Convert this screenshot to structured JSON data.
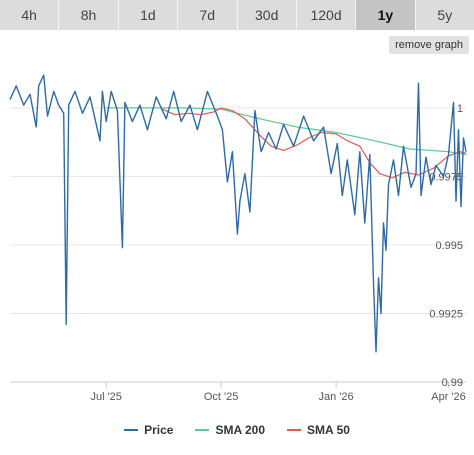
{
  "tabs": [
    {
      "label": "4h",
      "active": false
    },
    {
      "label": "8h",
      "active": false
    },
    {
      "label": "1d",
      "active": false
    },
    {
      "label": "7d",
      "active": false
    },
    {
      "label": "30d",
      "active": false
    },
    {
      "label": "120d",
      "active": false
    },
    {
      "label": "1y",
      "active": true
    },
    {
      "label": "5y",
      "active": false
    }
  ],
  "remove_graph_label": "remove graph",
  "colors": {
    "price": "#2e6ba6",
    "sma200": "#5cc98e",
    "sma50": "#e05a5a",
    "grid": "#e6e6e6",
    "axis": "#bcd0e6"
  },
  "chart_data": {
    "type": "line",
    "title": "",
    "xlabel": "",
    "ylabel": "",
    "x_range": [
      "2025-04-15",
      "2026-04-15"
    ],
    "ylim": [
      0.99,
      1.0016
    ],
    "x_ticks": [
      {
        "label": "Jul '25",
        "date": "2025-07-01"
      },
      {
        "label": "Oct '25",
        "date": "2025-10-01"
      },
      {
        "label": "Jan '26",
        "date": "2026-01-01"
      },
      {
        "label": "Apr '26",
        "date": "2026-04-01"
      }
    ],
    "y_ticks": [
      {
        "label": "0.99",
        "value": 0.99
      },
      {
        "label": "0.9925",
        "value": 0.9925
      },
      {
        "label": "0.995",
        "value": 0.995
      },
      {
        "label": "0.9975",
        "value": 0.9975
      },
      {
        "label": "1",
        "value": 1.0
      }
    ],
    "grid": true,
    "legend_position": "bottom",
    "series": [
      {
        "name": "Price",
        "color": "#2e6ba6",
        "points": [
          [
            "2025-04-15",
            1.0003
          ],
          [
            "2025-04-20",
            1.0008
          ],
          [
            "2025-04-26",
            1.0001
          ],
          [
            "2025-05-01",
            1.0005
          ],
          [
            "2025-05-06",
            0.9993
          ],
          [
            "2025-05-08",
            1.0008
          ],
          [
            "2025-05-12",
            1.0012
          ],
          [
            "2025-05-15",
            0.9997
          ],
          [
            "2025-05-20",
            1.0006
          ],
          [
            "2025-05-24",
            1.0001
          ],
          [
            "2025-05-28",
            0.9998
          ],
          [
            "2025-05-30",
            0.9921
          ],
          [
            "2025-06-01",
            1.0001
          ],
          [
            "2025-06-06",
            1.0006
          ],
          [
            "2025-06-12",
            0.9998
          ],
          [
            "2025-06-18",
            1.0004
          ],
          [
            "2025-06-22",
            0.9996
          ],
          [
            "2025-06-26",
            0.9988
          ],
          [
            "2025-06-28",
            1.0006
          ],
          [
            "2025-07-01",
            0.9995
          ],
          [
            "2025-07-05",
            1.0006
          ],
          [
            "2025-07-10",
            0.9999
          ],
          [
            "2025-07-14",
            0.9949
          ],
          [
            "2025-07-16",
            1.0002
          ],
          [
            "2025-07-22",
            0.9995
          ],
          [
            "2025-07-28",
            1.0001
          ],
          [
            "2025-08-03",
            0.9992
          ],
          [
            "2025-08-10",
            1.0004
          ],
          [
            "2025-08-18",
            0.9996
          ],
          [
            "2025-08-24",
            1.0006
          ],
          [
            "2025-08-30",
            0.9995
          ],
          [
            "2025-09-06",
            1.0001
          ],
          [
            "2025-09-12",
            0.9992
          ],
          [
            "2025-09-20",
            1.0006
          ],
          [
            "2025-09-28",
            0.9997
          ],
          [
            "2025-10-02",
            0.9992
          ],
          [
            "2025-10-06",
            0.9973
          ],
          [
            "2025-10-10",
            0.9984
          ],
          [
            "2025-10-14",
            0.9954
          ],
          [
            "2025-10-16",
            0.9966
          ],
          [
            "2025-10-20",
            0.9976
          ],
          [
            "2025-10-24",
            0.9962
          ],
          [
            "2025-10-28",
            0.9999
          ],
          [
            "2025-11-02",
            0.9984
          ],
          [
            "2025-11-08",
            0.9991
          ],
          [
            "2025-11-14",
            0.9985
          ],
          [
            "2025-11-20",
            0.9994
          ],
          [
            "2025-11-28",
            0.9986
          ],
          [
            "2025-12-06",
            0.9997
          ],
          [
            "2025-12-14",
            0.9988
          ],
          [
            "2025-12-22",
            0.9993
          ],
          [
            "2025-12-28",
            0.9976
          ],
          [
            "2026-01-02",
            0.9987
          ],
          [
            "2026-01-06",
            0.9968
          ],
          [
            "2026-01-10",
            0.9981
          ],
          [
            "2026-01-16",
            0.9961
          ],
          [
            "2026-01-20",
            0.9984
          ],
          [
            "2026-01-24",
            0.9958
          ],
          [
            "2026-01-28",
            0.9983
          ],
          [
            "2026-01-31",
            0.9935
          ],
          [
            "2026-02-02",
            0.9911
          ],
          [
            "2026-02-04",
            0.9938
          ],
          [
            "2026-02-06",
            0.9925
          ],
          [
            "2026-02-08",
            0.9958
          ],
          [
            "2026-02-10",
            0.9948
          ],
          [
            "2026-02-12",
            0.9972
          ],
          [
            "2026-02-16",
            0.9981
          ],
          [
            "2026-02-20",
            0.9968
          ],
          [
            "2026-02-24",
            0.9986
          ],
          [
            "2026-03-02",
            0.9971
          ],
          [
            "2026-03-06",
            0.9976
          ],
          [
            "2026-03-08",
            1.0009
          ],
          [
            "2026-03-10",
            0.9968
          ],
          [
            "2026-03-14",
            0.9982
          ],
          [
            "2026-03-18",
            0.9972
          ],
          [
            "2026-03-22",
            0.9979
          ],
          [
            "2026-03-28",
            0.9975
          ],
          [
            "2026-04-01",
            0.9983
          ],
          [
            "2026-04-05",
            1.0002
          ],
          [
            "2026-04-07",
            0.9966
          ],
          [
            "2026-04-09",
            0.9992
          ],
          [
            "2026-04-11",
            0.9964
          ],
          [
            "2026-04-13",
            0.9989
          ],
          [
            "2026-04-15",
            0.9984
          ]
        ]
      },
      {
        "name": "SMA 200",
        "color": "#5cc98e",
        "points": [
          [
            "2025-07-01",
            1.0
          ],
          [
            "2025-08-01",
            1.0
          ],
          [
            "2025-09-01",
            1.0
          ],
          [
            "2025-10-01",
            0.99995
          ],
          [
            "2025-11-01",
            0.9996
          ],
          [
            "2025-12-01",
            0.9993
          ],
          [
            "2026-01-01",
            0.9991
          ],
          [
            "2026-02-01",
            0.9988
          ],
          [
            "2026-03-01",
            0.9985
          ],
          [
            "2026-04-01",
            0.9984
          ],
          [
            "2026-04-15",
            0.9983
          ]
        ]
      },
      {
        "name": "SMA 50",
        "color": "#e05a5a",
        "points": [
          [
            "2025-08-15",
            0.99995
          ],
          [
            "2025-08-25",
            0.99975
          ],
          [
            "2025-09-05",
            0.9998
          ],
          [
            "2025-09-15",
            0.99975
          ],
          [
            "2025-09-25",
            0.99985
          ],
          [
            "2025-10-01",
            1.0
          ],
          [
            "2025-10-10",
            0.9999
          ],
          [
            "2025-10-20",
            0.9996
          ],
          [
            "2025-11-01",
            0.999
          ],
          [
            "2025-11-10",
            0.9986
          ],
          [
            "2025-11-20",
            0.99845
          ],
          [
            "2025-12-01",
            0.99865
          ],
          [
            "2025-12-10",
            0.9989
          ],
          [
            "2025-12-20",
            0.9991
          ],
          [
            "2026-01-01",
            0.99905
          ],
          [
            "2026-01-10",
            0.9988
          ],
          [
            "2026-01-20",
            0.9986
          ],
          [
            "2026-01-28",
            0.998
          ],
          [
            "2026-02-05",
            0.9976
          ],
          [
            "2026-02-15",
            0.99745
          ],
          [
            "2026-02-25",
            0.99765
          ],
          [
            "2026-03-08",
            0.99755
          ],
          [
            "2026-03-20",
            0.9978
          ],
          [
            "2026-04-01",
            0.99825
          ],
          [
            "2026-04-10",
            0.9984
          ],
          [
            "2026-04-15",
            0.99835
          ]
        ]
      }
    ]
  }
}
